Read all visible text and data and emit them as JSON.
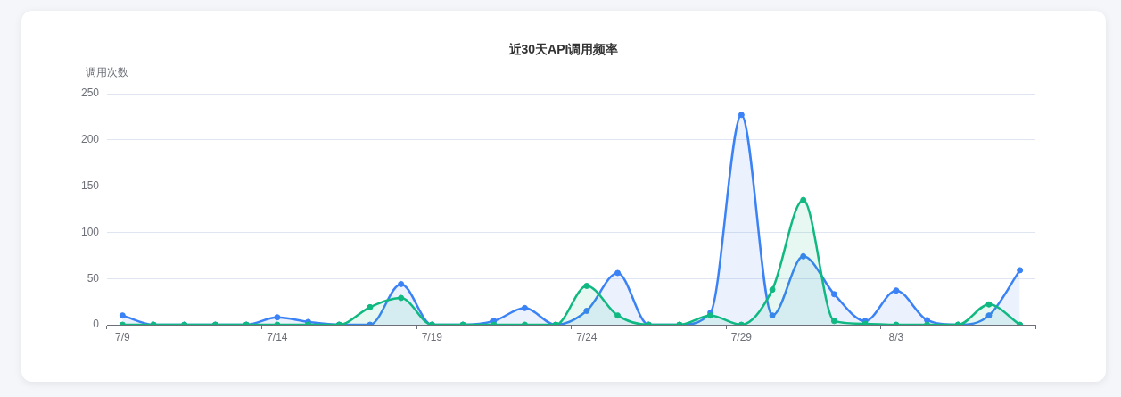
{
  "chart_data": {
    "type": "area",
    "title": "近30天API调用频率",
    "ylabel": "调用次数",
    "categories": [
      "7/9",
      null,
      null,
      null,
      null,
      "7/14",
      null,
      null,
      null,
      null,
      "7/19",
      null,
      null,
      null,
      null,
      "7/24",
      null,
      null,
      null,
      null,
      "7/29",
      null,
      null,
      null,
      null,
      "8/3",
      null,
      null,
      null,
      null
    ],
    "series": [
      {
        "color": "#3b82f6",
        "values": [
          10,
          0,
          0,
          0,
          0,
          8,
          3,
          0,
          0,
          44,
          0,
          0,
          4,
          18,
          0,
          15,
          56,
          0,
          0,
          13,
          227,
          10,
          74,
          33,
          4,
          37,
          5,
          0,
          10,
          59
        ]
      },
      {
        "color": "#10b981",
        "values": [
          0,
          0,
          0,
          0,
          0,
          0,
          0,
          0,
          19,
          29,
          0,
          0,
          0,
          0,
          0,
          42,
          10,
          0,
          0,
          10,
          0,
          38,
          135,
          4,
          1,
          0,
          0,
          0,
          22,
          0
        ]
      }
    ],
    "ylim": [
      0,
      250
    ],
    "yticks": [
      0,
      50,
      100,
      150,
      200,
      250
    ],
    "grid": "y",
    "legend": false,
    "marker": "circle",
    "line_style": "solid"
  }
}
